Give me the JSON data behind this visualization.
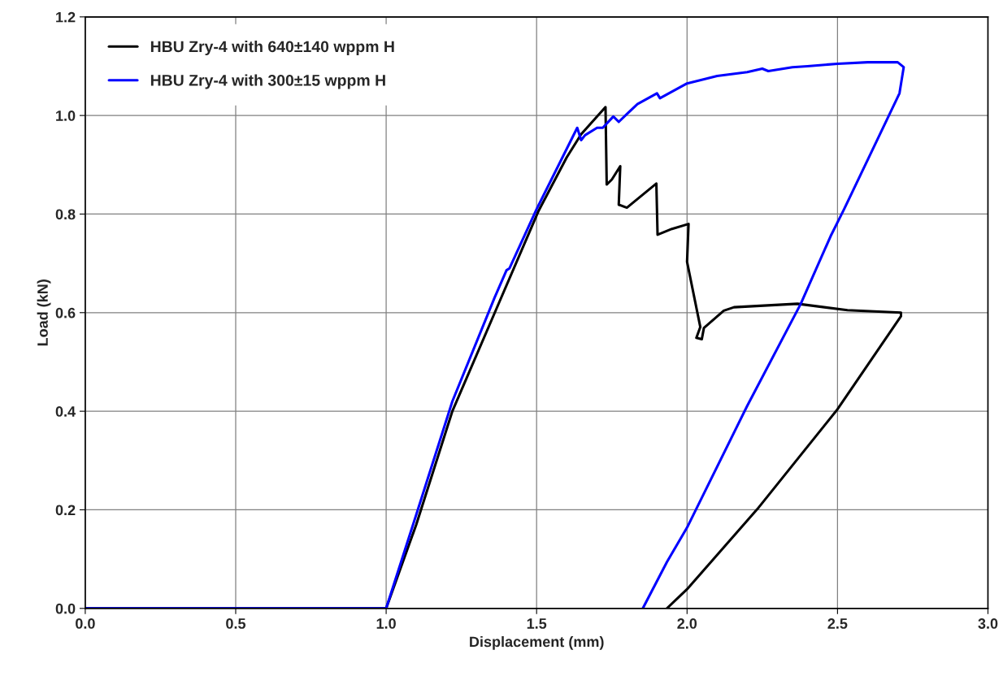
{
  "chart_data": {
    "type": "line",
    "xlabel": "Displacement (mm)",
    "ylabel": "Load (kN)",
    "xlim": [
      0,
      3
    ],
    "ylim": [
      0,
      1.2
    ],
    "xticks": [
      {
        "value": 0,
        "label": "0.0"
      },
      {
        "value": 0.5,
        "label": "0.5"
      },
      {
        "value": 1,
        "label": "1.0"
      },
      {
        "value": 1.5,
        "label": "1.5"
      },
      {
        "value": 2,
        "label": "2.0"
      },
      {
        "value": 2.5,
        "label": "2.5"
      },
      {
        "value": 3,
        "label": "3.0"
      }
    ],
    "yticks": [
      {
        "value": 0,
        "label": "0.0"
      },
      {
        "value": 0.2,
        "label": "0.2"
      },
      {
        "value": 0.4,
        "label": "0.4"
      },
      {
        "value": 0.6,
        "label": "0.6"
      },
      {
        "value": 0.8,
        "label": "0.8"
      },
      {
        "value": 1,
        "label": "1.0"
      },
      {
        "value": 1.2,
        "label": "1.2"
      }
    ],
    "grid": true,
    "legend": "top left",
    "marker": "none",
    "line_style": "solid",
    "series": [
      {
        "name": "HBU Zry-4 with 640±140 wppm H",
        "color": "#000000",
        "x": [
          0,
          1.0,
          1.1,
          1.22,
          1.368,
          1.507,
          1.6,
          1.648,
          1.729,
          1.733,
          1.75,
          1.778,
          1.773,
          1.8,
          1.898,
          1.902,
          1.95,
          2.005,
          2.0,
          2.044,
          2.031,
          2.049,
          2.056,
          2.122,
          2.156,
          2.367,
          2.533,
          2.711,
          2.711,
          2.5,
          2.233,
          2.0,
          1.933
        ],
        "values": [
          0,
          0,
          0.17,
          0.4,
          0.61,
          0.807,
          0.915,
          0.962,
          1.017,
          0.86,
          0.87,
          0.897,
          0.819,
          0.813,
          0.862,
          0.758,
          0.77,
          0.78,
          0.703,
          0.571,
          0.549,
          0.546,
          0.569,
          0.604,
          0.611,
          0.618,
          0.605,
          0.6,
          0.593,
          0.404,
          0.201,
          0.039,
          0
        ]
      },
      {
        "name": "HBU Zry-4 with 300±15 wppm H",
        "color": "#0000ff",
        "x": [
          0,
          1.0,
          1.1,
          1.22,
          1.36,
          1.4,
          1.41,
          1.5,
          1.635,
          1.648,
          1.661,
          1.701,
          1.72,
          1.755,
          1.773,
          1.8,
          1.835,
          1.9,
          1.91,
          2.0,
          2.1,
          2.2,
          2.25,
          2.27,
          2.35,
          2.4,
          2.5,
          2.6,
          2.7,
          2.72,
          2.706,
          2.522,
          2.477,
          2.378,
          2.2,
          2.0,
          1.933,
          1.853
        ],
        "values": [
          0,
          0,
          0.19,
          0.42,
          0.63,
          0.686,
          0.69,
          0.81,
          0.975,
          0.95,
          0.96,
          0.975,
          0.975,
          0.998,
          0.987,
          1.003,
          1.023,
          1.045,
          1.035,
          1.065,
          1.08,
          1.088,
          1.095,
          1.09,
          1.098,
          1.1,
          1.105,
          1.108,
          1.108,
          1.098,
          1.045,
          0.81,
          0.755,
          0.618,
          0.411,
          0.164,
          0.094,
          0
        ]
      }
    ]
  }
}
